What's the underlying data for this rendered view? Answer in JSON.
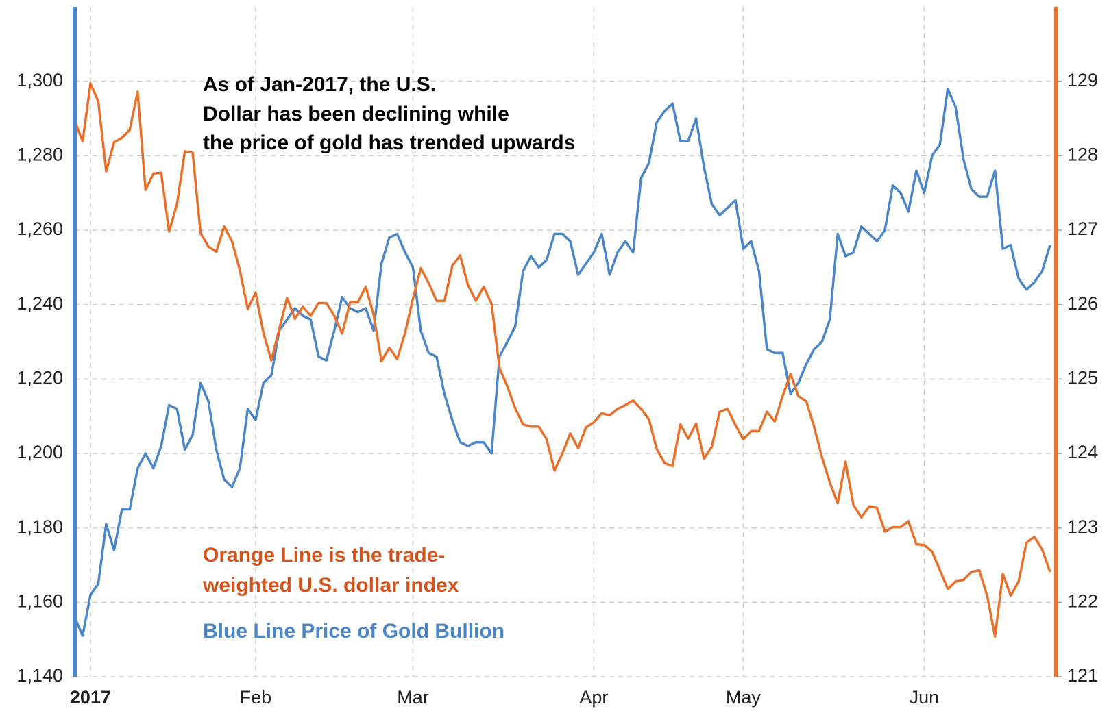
{
  "chart_data": {
    "type": "line",
    "categories": [
      null,
      null,
      "2017",
      null,
      null,
      null,
      null,
      null,
      null,
      null,
      null,
      null,
      null,
      null,
      null,
      null,
      null,
      null,
      null,
      null,
      null,
      null,
      null,
      "Feb",
      null,
      null,
      null,
      null,
      null,
      null,
      null,
      null,
      null,
      null,
      null,
      null,
      null,
      null,
      null,
      null,
      null,
      null,
      null,
      "Mar",
      null,
      null,
      null,
      null,
      null,
      null,
      null,
      null,
      null,
      null,
      null,
      null,
      null,
      null,
      null,
      null,
      null,
      null,
      null,
      null,
      null,
      null,
      "Apr",
      null,
      null,
      null,
      null,
      null,
      null,
      null,
      null,
      null,
      null,
      null,
      null,
      null,
      null,
      null,
      null,
      null,
      null,
      "May",
      null,
      null,
      null,
      null,
      null,
      null,
      null,
      null,
      null,
      null,
      null,
      null,
      null,
      null,
      null,
      null,
      null,
      null,
      null,
      null,
      null,
      null,
      "Jun",
      null,
      null,
      null,
      null,
      null,
      null,
      null,
      null,
      null,
      null,
      null,
      null,
      null,
      null,
      null,
      null
    ],
    "series": [
      {
        "color": "#4a86c8",
        "axis": "y",
        "values": [
          1156,
          1151,
          1162,
          1165,
          1181,
          1174,
          1185,
          1185,
          1196,
          1200,
          1196,
          1202,
          1213,
          1212,
          1201,
          1205,
          1219,
          1214,
          1201,
          1193,
          1191,
          1196,
          1212,
          1209,
          1219,
          1221,
          1233,
          1236,
          1239,
          1237,
          1236,
          1226,
          1225,
          1233,
          1242,
          1239,
          1238,
          1239,
          1233,
          1251,
          1258,
          1259,
          1254,
          1250,
          1233,
          1227,
          1226,
          1216,
          1209,
          1203,
          1202,
          1203,
          1203,
          1200,
          1226,
          1230,
          1234,
          1249,
          1253,
          1250,
          1252,
          1259,
          1259,
          1257,
          1248,
          1251,
          1254,
          1259,
          1248,
          1254,
          1257,
          1254,
          1274,
          1278,
          1289,
          1292,
          1294,
          1284,
          1284,
          1290,
          1277,
          1267,
          1264,
          1266,
          1268,
          1255,
          1257,
          1249,
          1228,
          1227,
          1227,
          1216,
          1219,
          1224,
          1228,
          1230,
          1236,
          1259,
          1253,
          1254,
          1261,
          1259,
          1257,
          1260,
          1272,
          1270,
          1265,
          1276,
          1270,
          1280,
          1283,
          1298,
          1293,
          1279,
          1271,
          1269,
          1269,
          1276,
          1255,
          1256,
          1247,
          1244,
          1246,
          1249,
          1256
        ]
      },
      {
        "color": "#e8702a",
        "axis": "y2",
        "values": [
          128.47,
          128.19,
          128.97,
          128.73,
          127.79,
          128.18,
          128.24,
          128.35,
          128.86,
          127.54,
          127.76,
          127.77,
          126.98,
          127.35,
          128.06,
          128.04,
          126.96,
          126.78,
          126.71,
          127.05,
          126.85,
          126.46,
          125.94,
          126.16,
          125.62,
          125.25,
          125.67,
          126.09,
          125.81,
          125.97,
          125.85,
          126.02,
          126.02,
          125.85,
          125.61,
          126.03,
          126.03,
          126.24,
          125.86,
          125.24,
          125.42,
          125.27,
          125.62,
          126.08,
          126.49,
          126.29,
          126.05,
          126.05,
          126.52,
          126.66,
          126.26,
          126.05,
          126.24,
          126.01,
          125.15,
          124.9,
          124.61,
          124.39,
          124.36,
          124.36,
          124.19,
          123.77,
          124.0,
          124.27,
          124.07,
          124.35,
          124.42,
          124.54,
          124.51,
          124.6,
          124.65,
          124.71,
          124.6,
          124.46,
          124.06,
          123.87,
          123.83,
          124.39,
          124.2,
          124.4,
          123.93,
          124.09,
          124.56,
          124.6,
          124.38,
          124.19,
          124.3,
          124.3,
          124.56,
          124.43,
          124.77,
          125.07,
          124.77,
          124.7,
          124.36,
          123.95,
          123.61,
          123.33,
          123.89,
          123.31,
          123.14,
          123.29,
          123.27,
          122.95,
          123.01,
          123.01,
          123.09,
          122.78,
          122.77,
          122.68,
          122.43,
          122.18,
          122.28,
          122.3,
          122.41,
          122.43,
          122.09,
          121.54,
          122.38,
          122.09,
          122.28,
          122.8,
          122.88,
          122.71,
          122.41
        ]
      }
    ],
    "ylim": [
      1140,
      1320
    ],
    "yticks": [
      {
        "value": 1140,
        "label": "1,140"
      },
      {
        "value": 1160,
        "label": "1,160"
      },
      {
        "value": 1180,
        "label": "1,180"
      },
      {
        "value": 1200,
        "label": "1,200"
      },
      {
        "value": 1220,
        "label": "1,220"
      },
      {
        "value": 1240,
        "label": "1,240"
      },
      {
        "value": 1260,
        "label": "1,260"
      },
      {
        "value": 1280,
        "label": "1,280"
      },
      {
        "value": 1300,
        "label": "1,300"
      }
    ],
    "y2lim": [
      121,
      130
    ],
    "y2ticks": [
      121,
      122,
      123,
      124,
      125,
      126,
      127,
      128,
      129
    ],
    "grid": true,
    "annotations": [
      {
        "color": "#000000",
        "lines": [
          "As of Jan-2017, the U.S.",
          "Dollar has been declining while",
          "the price of gold has trended upwards"
        ]
      },
      {
        "color": "#d4531c",
        "lines": [
          "Orange Line is the trade-",
          "weighted U.S. dollar index"
        ]
      },
      {
        "color": "#4a86c8",
        "lines": [
          "Blue Line Price of Gold Bullion"
        ]
      }
    ]
  }
}
